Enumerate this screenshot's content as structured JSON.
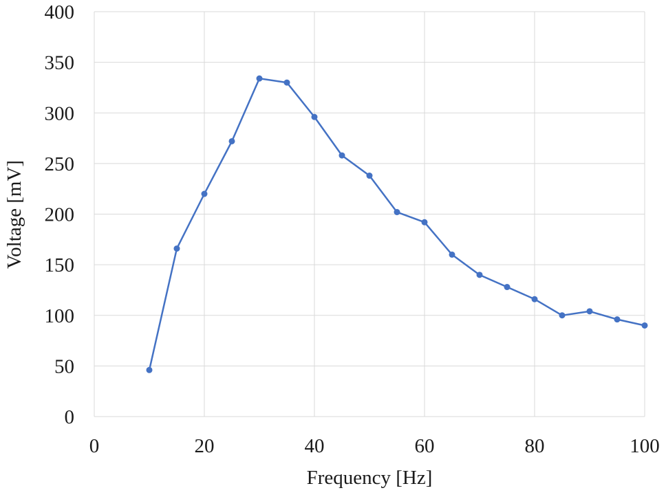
{
  "chart_data": {
    "type": "line",
    "title": "",
    "xlabel": "Frequency [Hz]",
    "ylabel": "Voltage [mV]",
    "xlim": [
      0,
      100
    ],
    "ylim": [
      0,
      400
    ],
    "xticks": [
      0,
      20,
      40,
      60,
      80,
      100
    ],
    "yticks": [
      0,
      50,
      100,
      150,
      200,
      250,
      300,
      350,
      400
    ],
    "grid": true,
    "legend": "none",
    "series": [
      {
        "color": "#4472c4",
        "marker": "circle",
        "x": [
          10,
          15,
          20,
          25,
          30,
          35,
          40,
          45,
          50,
          55,
          60,
          65,
          70,
          75,
          80,
          85,
          90,
          95,
          100
        ],
        "y": [
          46,
          166,
          220,
          272,
          334,
          330,
          296,
          258,
          238,
          202,
          192,
          160,
          140,
          128,
          116,
          100,
          104,
          96,
          90
        ]
      }
    ]
  }
}
